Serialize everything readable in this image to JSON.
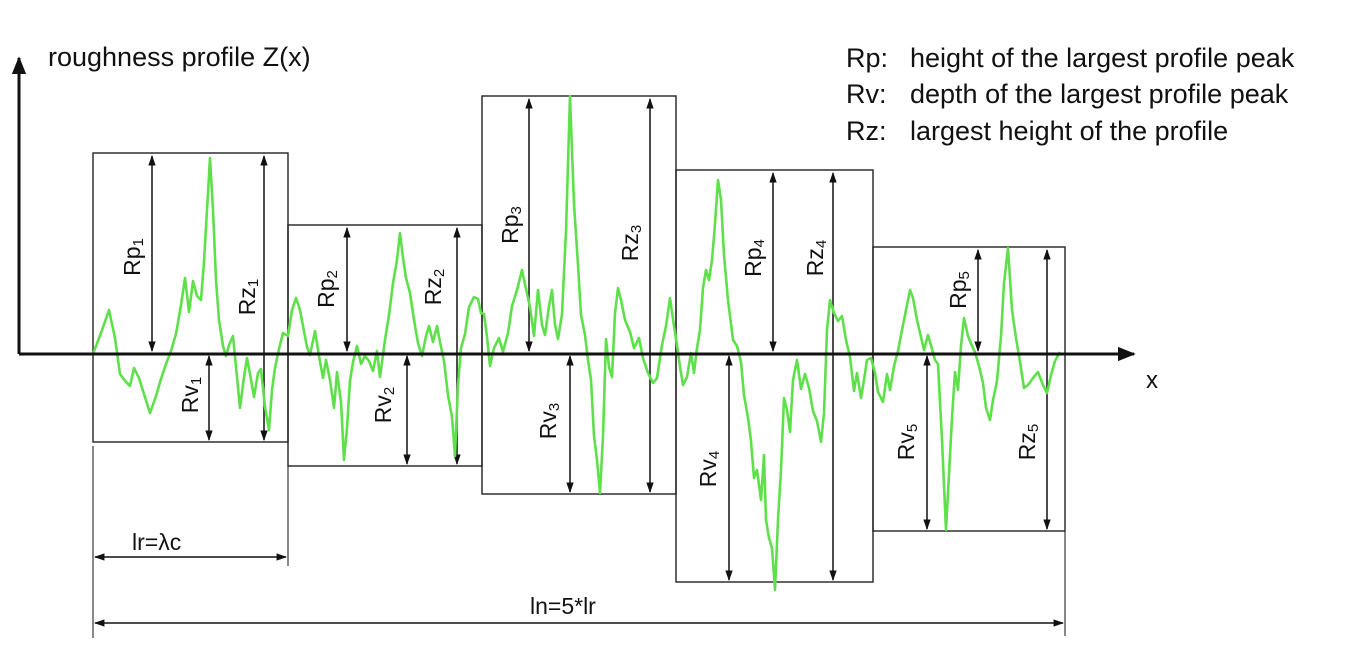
{
  "y_axis_label": "roughness profile Z(x)",
  "x_axis_label": "x",
  "legend": [
    {
      "key": "Rp:",
      "text": "height of the largest profile peak"
    },
    {
      "key": "Rv:",
      "text": "depth of the largest profile peak"
    },
    {
      "key": "Rz:",
      "text": "largest height of the profile"
    }
  ],
  "sections": [
    {
      "rp": "Rp",
      "rv": "Rv",
      "rz": "Rz",
      "sub": "1"
    },
    {
      "rp": "Rp",
      "rv": "Rv",
      "rz": "Rz",
      "sub": "2"
    },
    {
      "rp": "Rp",
      "rv": "Rv",
      "rz": "Rz",
      "sub": "3"
    },
    {
      "rp": "Rp",
      "rv": "Rv",
      "rz": "Rz",
      "sub": "4"
    },
    {
      "rp": "Rp",
      "rv": "Rv",
      "rz": "Rz",
      "sub": "5"
    }
  ],
  "lr_label": "lr=λc",
  "ln_label": "ln=5*lr",
  "colors": {
    "profile": "#5ee04a",
    "lines": "#111111"
  }
}
